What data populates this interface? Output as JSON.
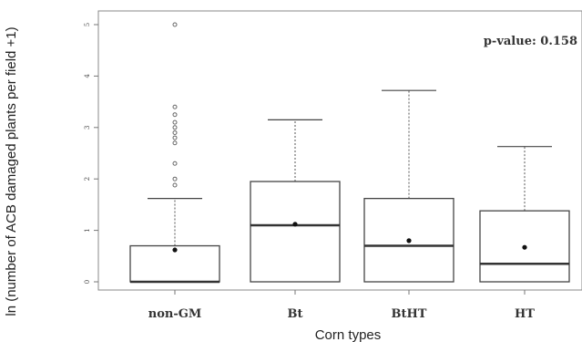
{
  "chart_data": {
    "type": "box",
    "xlabel": "Corn types",
    "ylabel": "ln (number of ACB damaged plants per field +1)",
    "annotation": "p-value: 0.158",
    "ylim": [
      -0.15,
      5.15
    ],
    "yticks": [
      0,
      1,
      2,
      3,
      4,
      5
    ],
    "categories": [
      "non-GM",
      "Bt",
      "BtHT",
      "HT"
    ],
    "boxes": [
      {
        "category": "non-GM",
        "min": 0,
        "q1": 0,
        "median": 0,
        "q3": 0.7,
        "max": 1.62,
        "mean": 0.62,
        "outliers": [
          1.88,
          2.0,
          2.3,
          2.7,
          2.8,
          2.9,
          3.0,
          3.1,
          3.25,
          3.4,
          5.0
        ]
      },
      {
        "category": "Bt",
        "min": 0,
        "q1": 0,
        "median": 1.1,
        "q3": 1.95,
        "max": 3.15,
        "mean": 1.12,
        "outliers": []
      },
      {
        "category": "BtHT",
        "min": 0,
        "q1": 0,
        "median": 0.7,
        "q3": 1.62,
        "max": 3.72,
        "mean": 0.8,
        "outliers": []
      },
      {
        "category": "HT",
        "min": 0,
        "q1": 0,
        "median": 0.35,
        "q3": 1.38,
        "max": 2.63,
        "mean": 0.67,
        "outliers": []
      }
    ],
    "grid": false,
    "legend": "none"
  }
}
